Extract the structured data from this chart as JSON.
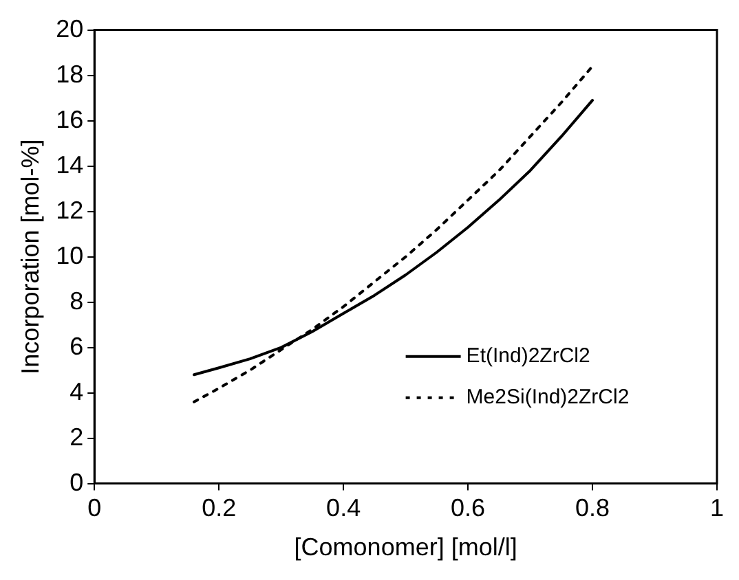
{
  "chart_data": {
    "type": "line",
    "xlabel": "[Comonomer] [mol/l]",
    "ylabel": "Incorporation [mol-%]",
    "x": [
      0.16,
      0.2,
      0.25,
      0.3,
      0.35,
      0.4,
      0.45,
      0.5,
      0.55,
      0.6,
      0.65,
      0.7,
      0.75,
      0.8
    ],
    "series": [
      {
        "name": "Et(Ind)2ZrCl2",
        "color": "#000000",
        "line_style": "solid",
        "values": [
          4.8,
          5.1,
          5.5,
          6.0,
          6.7,
          7.5,
          8.3,
          9.2,
          10.2,
          11.3,
          12.5,
          13.8,
          15.3,
          16.9
        ]
      },
      {
        "name": "Me2Si(Ind)2ZrCl2",
        "color": "#000000",
        "line_style": "dotted",
        "values": [
          3.6,
          4.2,
          5.0,
          5.9,
          6.8,
          7.8,
          8.9,
          10.0,
          11.2,
          12.5,
          13.8,
          15.3,
          16.8,
          18.4
        ]
      }
    ],
    "xlim": [
      0,
      1
    ],
    "xticks": [
      0,
      0.2,
      0.4,
      0.6,
      0.8,
      1
    ],
    "ylim": [
      0,
      20
    ],
    "yticks": [
      0,
      2,
      4,
      6,
      8,
      10,
      12,
      14,
      16,
      18,
      20
    ],
    "grid": false,
    "legend": "right",
    "marker": "none"
  }
}
